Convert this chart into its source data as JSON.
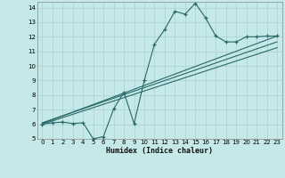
{
  "xlabel": "Humidex (Indice chaleur)",
  "xlim": [
    -0.5,
    23.5
  ],
  "ylim": [
    5,
    14.4
  ],
  "xticks": [
    0,
    1,
    2,
    3,
    4,
    5,
    6,
    7,
    8,
    9,
    10,
    11,
    12,
    13,
    14,
    15,
    16,
    17,
    18,
    19,
    20,
    21,
    22,
    23
  ],
  "yticks": [
    5,
    6,
    7,
    8,
    9,
    10,
    11,
    12,
    13,
    14
  ],
  "bg_color": "#c5e8e8",
  "grid_color": "#acd0d0",
  "line_color": "#286868",
  "curve_x": [
    0,
    1,
    2,
    3,
    4,
    5,
    6,
    7,
    8,
    9,
    10,
    11,
    12,
    13,
    14,
    15,
    16,
    17,
    18,
    19,
    20,
    21,
    22,
    23
  ],
  "curve_y": [
    6.0,
    6.1,
    6.15,
    6.05,
    6.1,
    5.0,
    5.15,
    7.05,
    8.2,
    6.05,
    9.0,
    11.5,
    12.5,
    13.75,
    13.55,
    14.3,
    13.3,
    12.05,
    11.65,
    11.65,
    12.0,
    12.0,
    12.05,
    12.05
  ],
  "line1_x": [
    0,
    23
  ],
  "line1_y": [
    6.05,
    12.05
  ],
  "line2_x": [
    0,
    23
  ],
  "line2_y": [
    6.1,
    11.65
  ],
  "line3_x": [
    0,
    23
  ],
  "line3_y": [
    6.0,
    11.25
  ]
}
